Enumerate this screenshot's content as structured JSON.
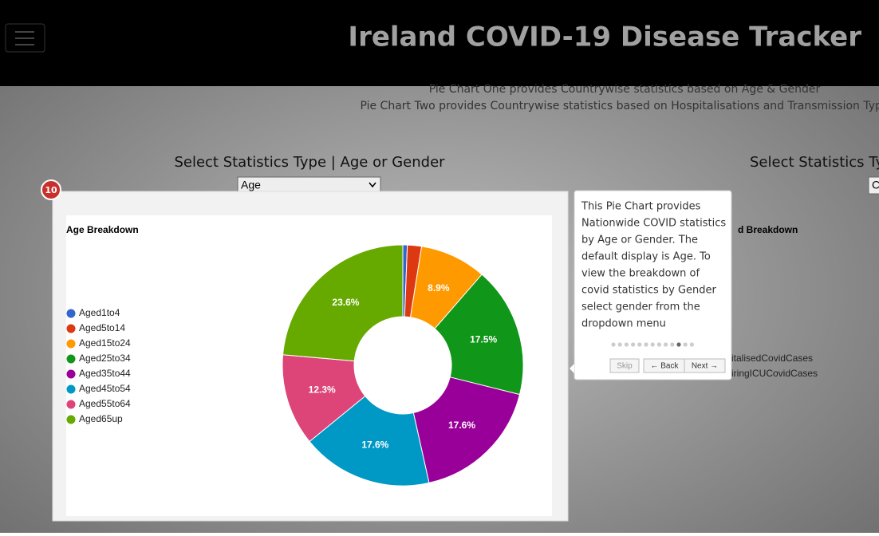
{
  "header": {
    "title": "Ireland COVID-19 Disease Tracker"
  },
  "intro": [
    "Pie Chart One provides Countrywise statistics based on Age & Gender",
    "Pie Chart Two provides Countrywise statistics based on Hospitalisations and Transmission Type"
  ],
  "left_panel": {
    "heading": "Select Statistics Type | Age or Gender",
    "select": "Age"
  },
  "right_panel": {
    "heading": "Select Statistics Type",
    "select": "C",
    "chart_title": "d Breakdown",
    "legend": [
      "italisedCovidCases",
      "iringICUCovidCases"
    ]
  },
  "tour": {
    "step": "10",
    "text_lines": [
      "This Pie Chart provides",
      "Nationwide COVID statistics",
      "by Age or Gender. The",
      "default display is Age. To",
      "view the breakdown of",
      "covid statistics by Gender",
      "select gender from the",
      "dropdown menu"
    ],
    "buttons": [
      "Skip",
      "← Back",
      "Next →"
    ]
  },
  "chart_data": {
    "type": "donut",
    "title": "Age Breakdown",
    "categories": [
      "Aged1to4",
      "Aged5to14",
      "Aged15to24",
      "Aged25to34",
      "Aged35to44",
      "Aged45to54",
      "Aged55to64",
      "Aged65up"
    ],
    "values": [
      0.6,
      1.9,
      8.9,
      17.5,
      17.6,
      17.6,
      12.3,
      23.6
    ],
    "value_labels": [
      null,
      null,
      "8.9%",
      "17.5%",
      "17.6%",
      "17.6%",
      "12.3%",
      "23.6%"
    ],
    "colors": [
      "#3366cc",
      "#dc3912",
      "#ff9900",
      "#109618",
      "#990099",
      "#0099c6",
      "#dd4477",
      "#66aa00"
    ],
    "legend": "left"
  }
}
